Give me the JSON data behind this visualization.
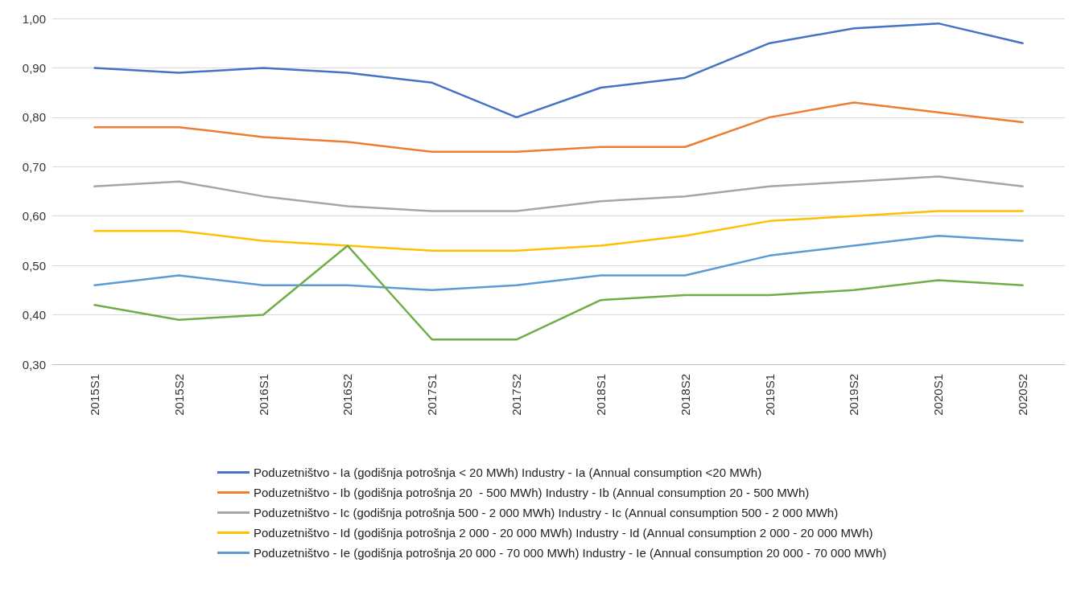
{
  "chart_data": {
    "type": "line",
    "categories": [
      "2015S1",
      "2015S2",
      "2016S1",
      "2016S2",
      "2017S1",
      "2017S2",
      "2018S1",
      "2018S2",
      "2019S1",
      "2019S2",
      "2020S1",
      "2020S2"
    ],
    "series": [
      {
        "name": "Poduzetništvo - Ia (godišnja potrošnja < 20 MWh) Industry - Ia (Annual consumption <20 MWh)",
        "color": "#4472c4",
        "values": [
          0.9,
          0.89,
          0.9,
          0.89,
          0.87,
          0.8,
          0.86,
          0.88,
          0.95,
          0.98,
          0.99,
          0.95
        ]
      },
      {
        "name": "Poduzetništvo - Ib (godišnja potrošnja 20  - 500 MWh) Industry - Ib (Annual consumption 20 - 500 MWh)",
        "color": "#ed7d31",
        "values": [
          0.78,
          0.78,
          0.76,
          0.75,
          0.73,
          0.73,
          0.74,
          0.74,
          0.8,
          0.83,
          0.81,
          0.79
        ]
      },
      {
        "name": "Poduzetništvo - Ic (godišnja potrošnja 500 - 2 000 MWh) Industry - Ic (Annual consumption 500 - 2 000 MWh)",
        "color": "#a5a5a5",
        "values": [
          0.66,
          0.67,
          0.64,
          0.62,
          0.61,
          0.61,
          0.63,
          0.64,
          0.66,
          0.67,
          0.68,
          0.66
        ]
      },
      {
        "name": "Poduzetništvo - Id (godišnja potrošnja 2 000 - 20 000 MWh) Industry - Id (Annual consumption 2 000 - 20 000 MWh)",
        "color": "#ffc000",
        "values": [
          0.57,
          0.57,
          0.55,
          0.54,
          0.53,
          0.53,
          0.54,
          0.56,
          0.59,
          0.6,
          0.61,
          0.61
        ]
      },
      {
        "name": "Poduzetništvo - Ie (godišnja potrošnja 20 000 - 70 000 MWh) Industry - Ie (Annual consumption 20 000 - 70 000 MWh)",
        "color": "#5b9bd5",
        "values": [
          0.46,
          0.48,
          0.46,
          0.46,
          0.45,
          0.46,
          0.48,
          0.48,
          0.52,
          0.54,
          0.56,
          0.55
        ]
      },
      {
        "color": "#70ad47",
        "values": [
          0.42,
          0.39,
          0.4,
          0.54,
          0.35,
          0.35,
          0.43,
          0.44,
          0.44,
          0.45,
          0.47,
          0.46
        ]
      }
    ],
    "ylim": [
      0.3,
      1.0
    ],
    "yticks": [
      {
        "value": 0.3,
        "label": "0,30"
      },
      {
        "value": 0.4,
        "label": "0,40"
      },
      {
        "value": 0.5,
        "label": "0,50"
      },
      {
        "value": 0.6,
        "label": "0,60"
      },
      {
        "value": 0.7,
        "label": "0,70"
      },
      {
        "value": 0.8,
        "label": "0,80"
      },
      {
        "value": 0.9,
        "label": "0,90"
      },
      {
        "value": 1.0,
        "label": "1,00"
      }
    ],
    "grid": "y",
    "legend": "bottom",
    "marker": "none",
    "line_style": "solid"
  }
}
